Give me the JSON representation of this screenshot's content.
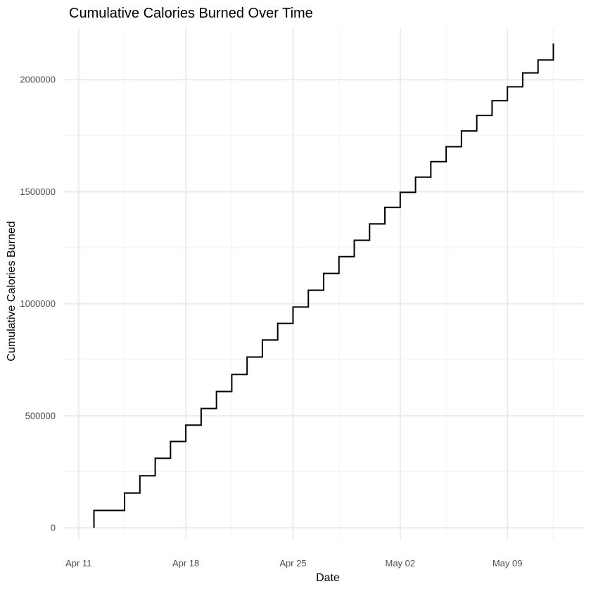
{
  "chart_data": {
    "type": "line",
    "step": true,
    "title": "Cumulative Calories Burned Over Time",
    "xlabel": "Date",
    "ylabel": "Cumulative Calories Burned",
    "xlim": [
      "2016-04-10",
      "2016-05-14"
    ],
    "ylim": [
      -50000,
      2230000
    ],
    "x_ticks": [
      {
        "date": "2016-04-11",
        "label": "Apr 11"
      },
      {
        "date": "2016-04-18",
        "label": "Apr 18"
      },
      {
        "date": "2016-04-25",
        "label": "Apr 25"
      },
      {
        "date": "2016-05-02",
        "label": "May 02"
      },
      {
        "date": "2016-05-09",
        "label": "May 09"
      }
    ],
    "y_ticks": [
      {
        "value": 0,
        "label": "0"
      },
      {
        "value": 500000,
        "label": "500000"
      },
      {
        "value": 1000000,
        "label": "1000000"
      },
      {
        "value": 1500000,
        "label": "1500000"
      },
      {
        "value": 2000000,
        "label": "2000000"
      }
    ],
    "grid": true,
    "line_color": "#000000",
    "x": [
      "2016-04-12",
      "2016-04-13",
      "2016-04-14",
      "2016-04-15",
      "2016-04-16",
      "2016-04-17",
      "2016-04-18",
      "2016-04-19",
      "2016-04-20",
      "2016-04-21",
      "2016-04-22",
      "2016-04-23",
      "2016-04-24",
      "2016-04-25",
      "2016-04-26",
      "2016-04-27",
      "2016-04-28",
      "2016-04-29",
      "2016-04-30",
      "2016-05-01",
      "2016-05-02",
      "2016-05-03",
      "2016-05-04",
      "2016-05-05",
      "2016-05-06",
      "2016-05-07",
      "2016-05-08",
      "2016-05-09",
      "2016-05-10",
      "2016-05-11",
      "2016-05-12"
    ],
    "y": [
      0,
      77000,
      155000,
      232000,
      310000,
      385000,
      458000,
      532000,
      608000,
      684000,
      762000,
      838000,
      912000,
      985000,
      1060000,
      1135000,
      1210000,
      1283000,
      1356000,
      1430000,
      1497000,
      1565000,
      1634000,
      1701000,
      1771000,
      1840000,
      1906000,
      1968000,
      2030000,
      2088000,
      2140000
    ],
    "final_value": 2162000
  }
}
